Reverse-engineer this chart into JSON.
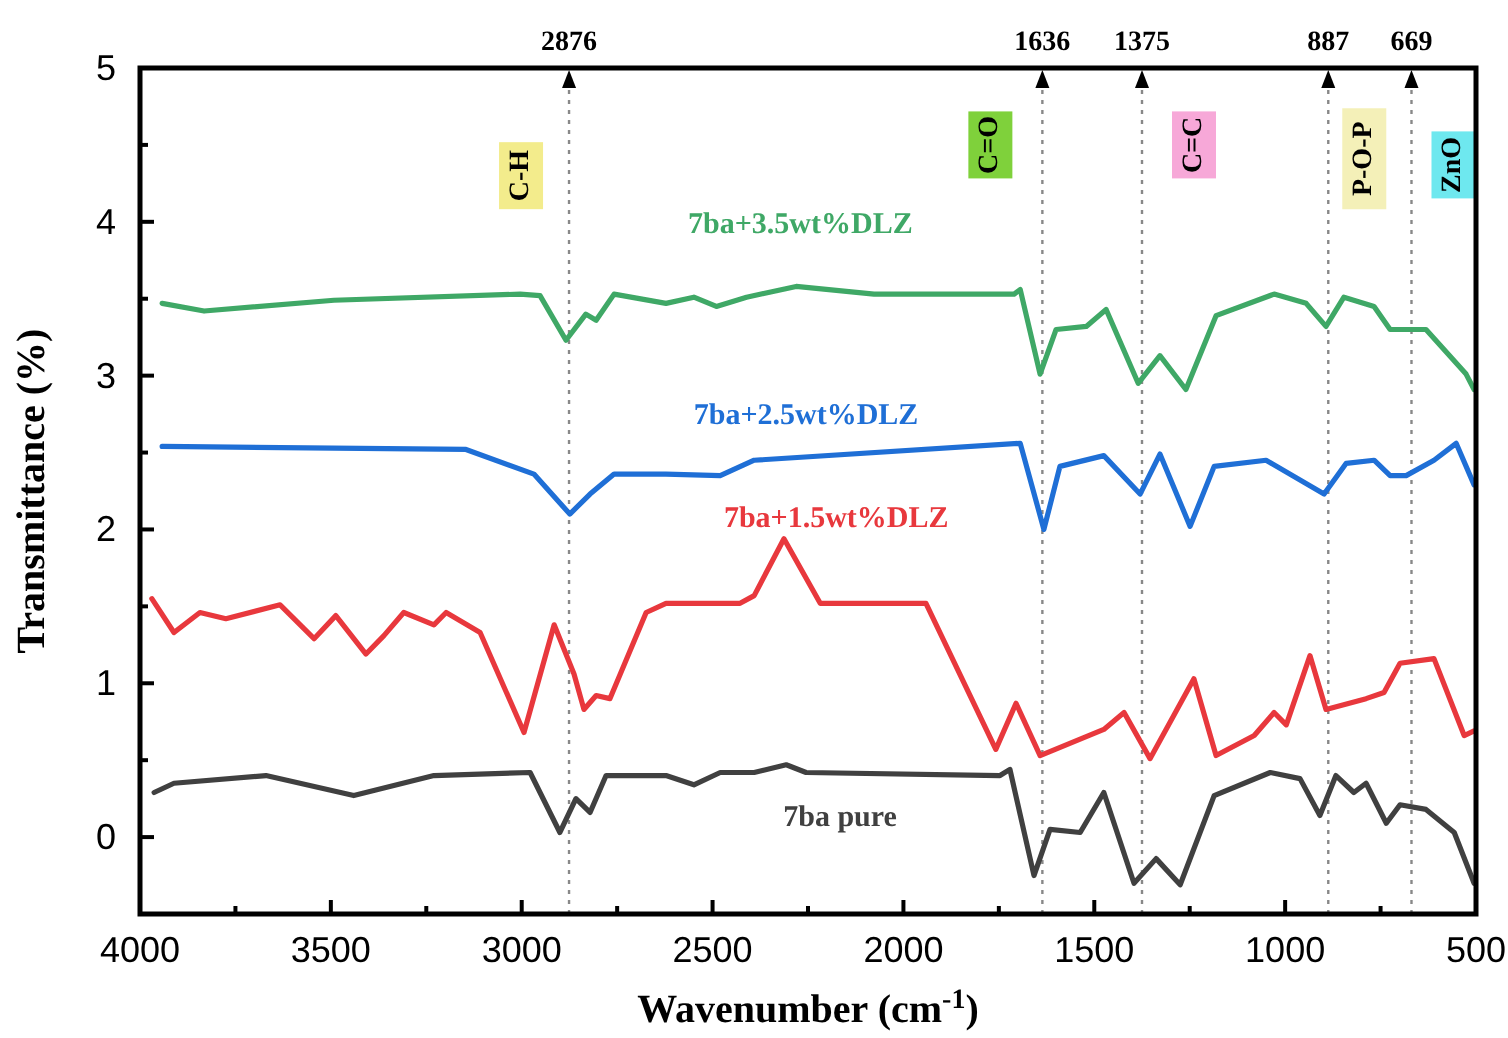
{
  "chart_data": {
    "type": "line",
    "xlabel": "Wavenumber (cm$^{-1}$)",
    "ylabel": "Transmittance (%)",
    "xlim": [
      4000,
      500
    ],
    "ylim": [
      -0.5,
      5
    ],
    "xticks": [
      4000,
      3500,
      3000,
      2500,
      2000,
      1500,
      1000,
      500
    ],
    "yticks": [
      0,
      1,
      2,
      3,
      4,
      5
    ],
    "grid": false,
    "marker": "none",
    "line_style": "solid",
    "series": [
      {
        "name": "7ba+3.5wt%DLZ",
        "color": "#3fa866",
        "x": [
          3942,
          3832,
          3492,
          3004,
          2952,
          2884,
          2832,
          2805,
          2758,
          2622,
          2549,
          2490,
          2411,
          2281,
          2077,
          1710,
          1694,
          1642,
          1600,
          1521,
          1469,
          1385,
          1328,
          1260,
          1181,
          1029,
          945,
          893,
          846,
          767,
          725,
          631,
          526,
          505
        ],
        "values": [
          3.47,
          3.42,
          3.49,
          3.53,
          3.52,
          3.23,
          3.4,
          3.36,
          3.53,
          3.47,
          3.51,
          3.45,
          3.51,
          3.58,
          3.53,
          3.53,
          3.56,
          3.01,
          3.3,
          3.32,
          3.43,
          2.95,
          3.13,
          2.91,
          3.39,
          3.53,
          3.47,
          3.32,
          3.51,
          3.45,
          3.3,
          3.3,
          3.01,
          2.91
        ]
      },
      {
        "name": "7ba+2.5wt%DLZ",
        "color": "#1f6fd6",
        "x": [
          3942,
          3146,
          2968,
          2874,
          2821,
          2758,
          2622,
          2480,
          2391,
          1694,
          1632,
          1590,
          1475,
          1380,
          1328,
          1249,
          1186,
          1050,
          898,
          840,
          767,
          725,
          683,
          610,
          552,
          505
        ],
        "values": [
          2.54,
          2.52,
          2.36,
          2.1,
          2.23,
          2.36,
          2.36,
          2.35,
          2.45,
          2.56,
          2.0,
          2.41,
          2.48,
          2.23,
          2.49,
          2.02,
          2.41,
          2.45,
          2.23,
          2.43,
          2.45,
          2.35,
          2.35,
          2.45,
          2.56,
          2.29
        ]
      },
      {
        "name": "7ba+1.5wt%DLZ",
        "color": "#e8383d",
        "x": [
          3969,
          3911,
          3843,
          3775,
          3633,
          3544,
          3487,
          3408,
          3361,
          3309,
          3230,
          3198,
          3109,
          2994,
          2915,
          2863,
          2837,
          2805,
          2769,
          2674,
          2622,
          2428,
          2391,
          2313,
          2218,
          1941,
          1758,
          1705,
          1642,
          1475,
          1422,
          1354,
          1239,
          1181,
          1081,
          1029,
          997,
          935,
          893,
          788,
          741,
          699,
          610,
          531,
          505
        ],
        "values": [
          1.55,
          1.33,
          1.46,
          1.42,
          1.51,
          1.29,
          1.44,
          1.19,
          1.31,
          1.46,
          1.38,
          1.46,
          1.33,
          0.68,
          1.38,
          1.06,
          0.83,
          0.92,
          0.9,
          1.46,
          1.52,
          1.52,
          1.57,
          1.94,
          1.52,
          1.52,
          0.57,
          0.87,
          0.53,
          0.7,
          0.81,
          0.51,
          1.03,
          0.53,
          0.66,
          0.81,
          0.73,
          1.18,
          0.83,
          0.9,
          0.94,
          1.13,
          1.16,
          0.66,
          0.69
        ]
      },
      {
        "name": "7ba pure",
        "color": "#404040",
        "x": [
          3963,
          3911,
          3670,
          3440,
          3230,
          2978,
          2900,
          2858,
          2821,
          2779,
          2622,
          2549,
          2480,
          2391,
          2307,
          2255,
          1747,
          1721,
          1658,
          1616,
          1537,
          1475,
          1396,
          1338,
          1275,
          1186,
          1039,
          961,
          909,
          867,
          820,
          788,
          735,
          699,
          631,
          557,
          505
        ],
        "values": [
          0.29,
          0.35,
          0.4,
          0.27,
          0.4,
          0.42,
          0.03,
          0.25,
          0.16,
          0.4,
          0.4,
          0.34,
          0.42,
          0.42,
          0.47,
          0.42,
          0.4,
          0.44,
          -0.25,
          0.05,
          0.03,
          0.29,
          -0.3,
          -0.14,
          -0.31,
          0.27,
          0.42,
          0.38,
          0.14,
          0.4,
          0.29,
          0.35,
          0.09,
          0.21,
          0.18,
          0.03,
          -0.3
        ]
      }
    ],
    "ref_lines": [
      {
        "axis": "x",
        "value": 2876,
        "label": "2876",
        "color": "#888888",
        "line_style": "dotted"
      },
      {
        "axis": "x",
        "value": 1636,
        "label": "1636",
        "color": "#888888",
        "line_style": "dotted"
      },
      {
        "axis": "x",
        "value": 1375,
        "label": "1375",
        "color": "#888888",
        "line_style": "dotted"
      },
      {
        "axis": "x",
        "value": 887,
        "label": "887",
        "color": "#888888",
        "line_style": "dotted"
      },
      {
        "axis": "x",
        "value": 669,
        "label": "669",
        "color": "#888888",
        "line_style": "dotted"
      }
    ],
    "annotations": [
      "C-H",
      "C=O",
      "C=C",
      "P-O-P",
      "ZnO"
    ]
  }
}
